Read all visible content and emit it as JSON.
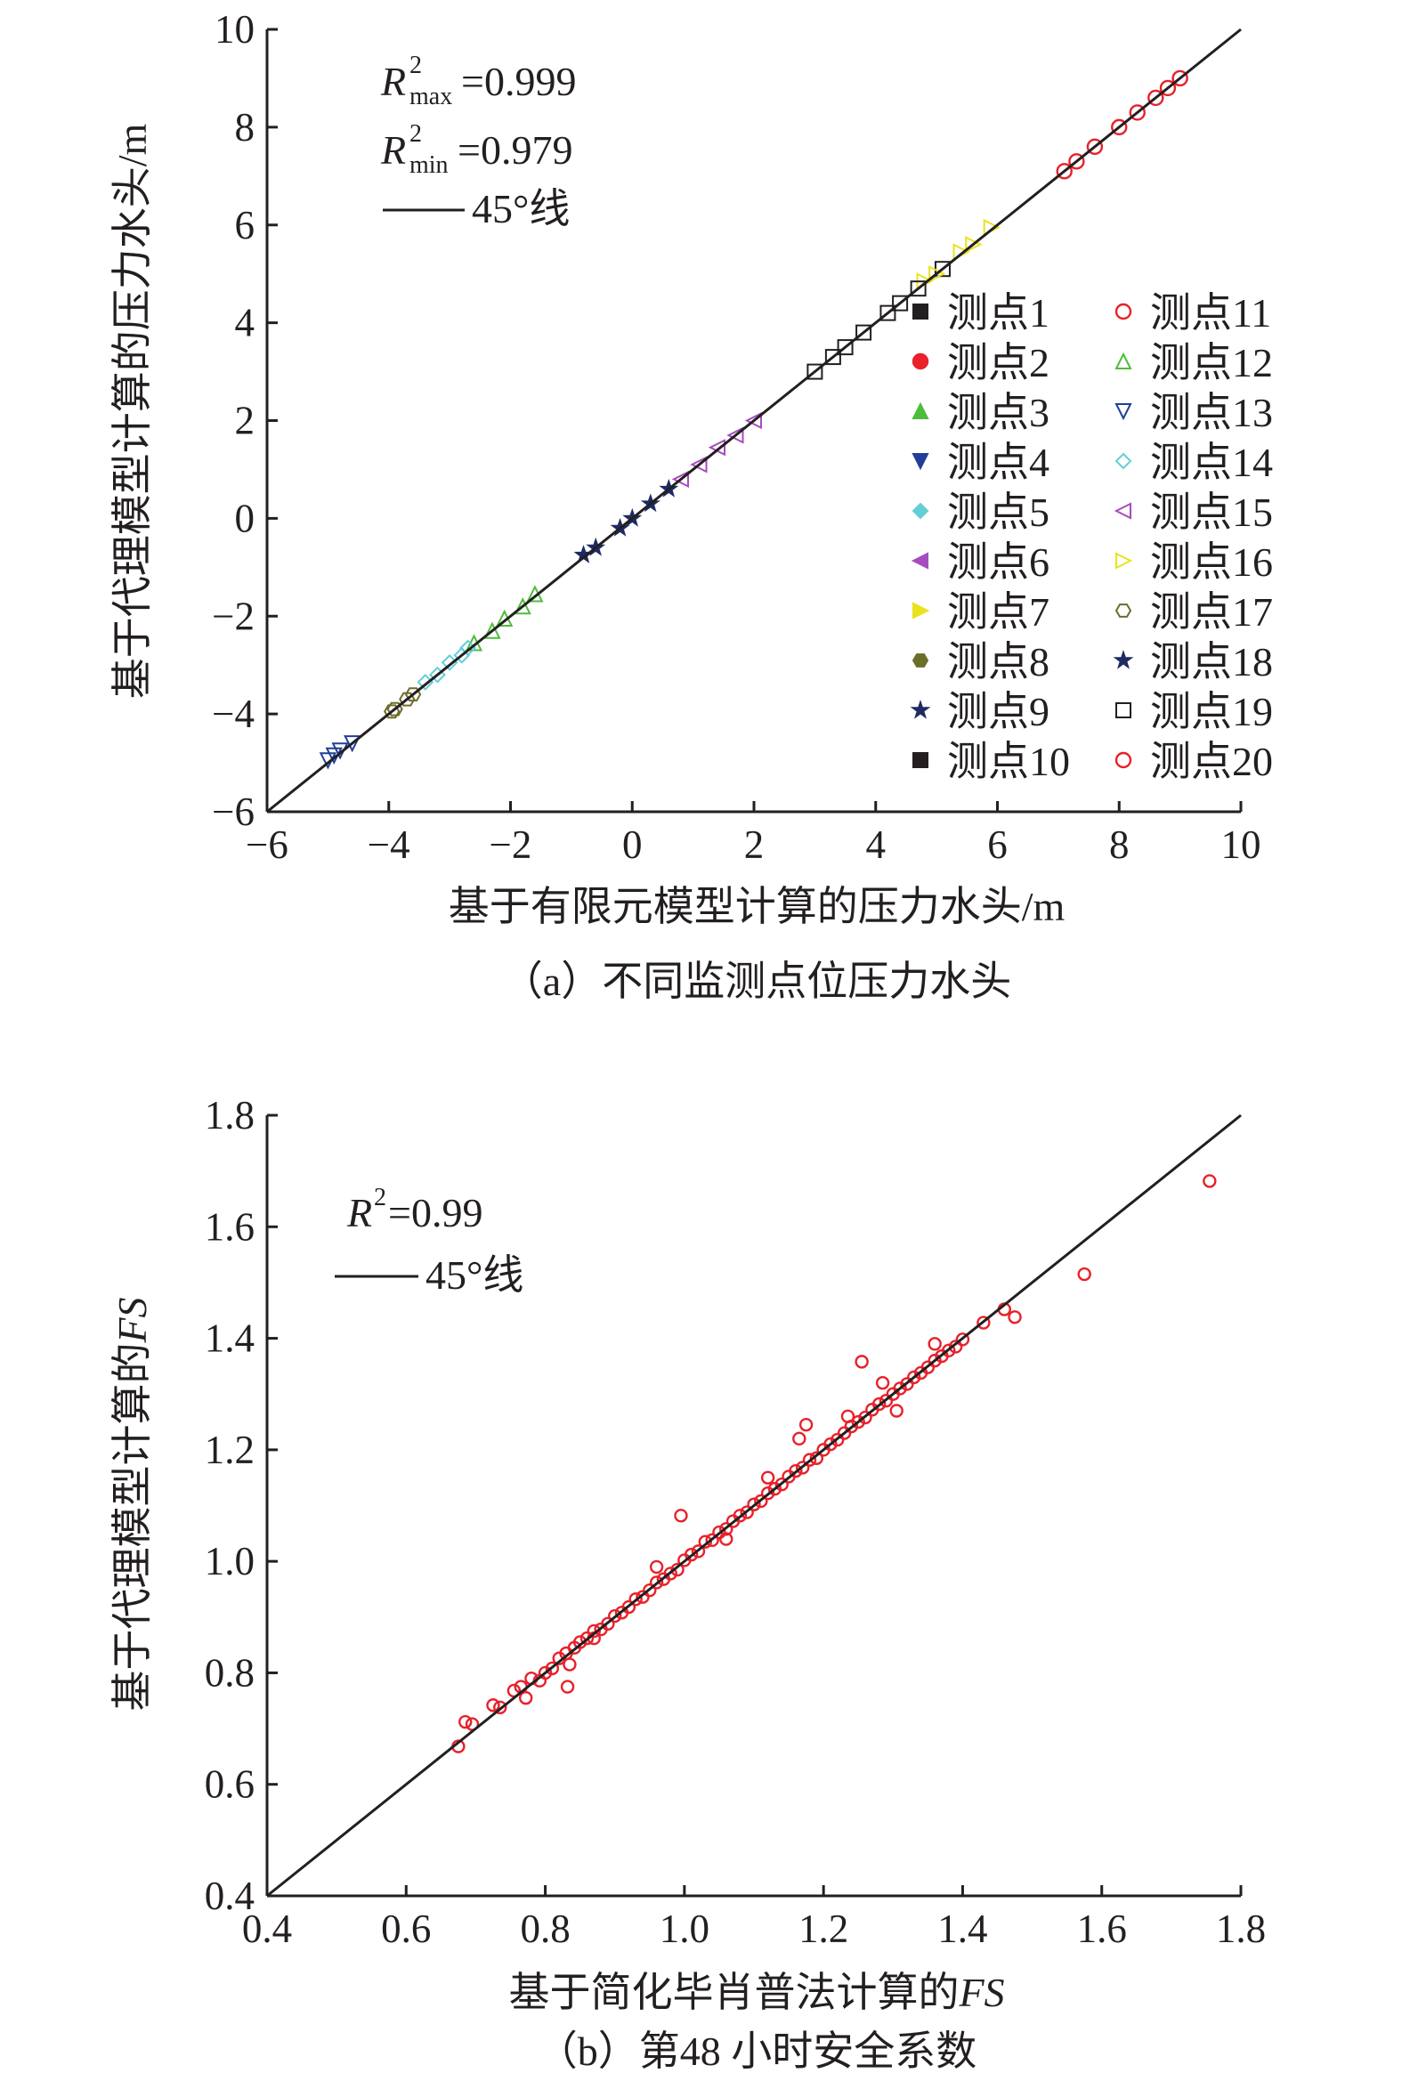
{
  "colors": {
    "axis": "#231f20",
    "fs_marker": "#e8212b",
    "pt1": "#231f20",
    "pt2": "#e8212b",
    "pt3": "#4dbe39",
    "pt4": "#1f3f9a",
    "pt5": "#62cfd6",
    "pt6": "#a54dbd",
    "pt7": "#e8e31c",
    "pt8": "#6d6d2a",
    "pt9": "#1e2b63",
    "pt10": "#231f20"
  },
  "chart_data": [
    {
      "type": "scatter",
      "caption": "（a）不同监测点位压力水头",
      "xlabel": "基于有限元模型计算的压力水头/m",
      "ylabel": "基于代理模型计算的压力水头/m",
      "xlim": [
        -6,
        10
      ],
      "ylim": [
        -6,
        10
      ],
      "xticks": [
        "−6",
        "−4",
        "−2",
        "0",
        "2",
        "4",
        "6",
        "8",
        "10"
      ],
      "yticks": [
        "−6",
        "−4",
        "−2",
        "0",
        "2",
        "4",
        "6",
        "8",
        "10"
      ],
      "grid": false,
      "annotations": {
        "r2max_base": "R",
        "r2max_sup": "2",
        "r2max_sub": "max",
        "r2max_val": "=0.999",
        "r2min_base": "R",
        "r2min_sup": "2",
        "r2min_sub": "min",
        "r2min_val": "=0.979",
        "line_label": "45°线"
      },
      "legend_position": "right-middle",
      "series": [
        {
          "name": "测点1",
          "marker": "square",
          "color": "#231f20",
          "x": [
            3.3,
            4.2,
            5.1
          ],
          "y": [
            3.3,
            4.2,
            5.1
          ]
        },
        {
          "name": "测点2",
          "marker": "circle",
          "color": "#e8212b",
          "x": [
            7.1,
            8.0,
            8.8
          ],
          "y": [
            7.1,
            8.0,
            8.8
          ]
        },
        {
          "name": "测点3",
          "marker": "triangle-up",
          "color": "#4dbe39",
          "x": [
            -2.6,
            -2.1,
            -1.6
          ],
          "y": [
            -2.55,
            -2.05,
            -1.55
          ]
        },
        {
          "name": "测点4",
          "marker": "triangle-down",
          "color": "#1f3f9a",
          "x": [
            -5.0,
            -4.8
          ],
          "y": [
            -4.95,
            -4.75
          ]
        },
        {
          "name": "测点5",
          "marker": "diamond",
          "color": "#62cfd6",
          "x": [
            -3.4,
            -3.0,
            -2.7
          ],
          "y": [
            -3.35,
            -2.95,
            -2.65
          ]
        },
        {
          "name": "测点6",
          "marker": "triangle-left",
          "color": "#a54dbd",
          "x": [
            0.8,
            1.4,
            2.0
          ],
          "y": [
            0.8,
            1.45,
            2.0
          ]
        },
        {
          "name": "测点7",
          "marker": "triangle-right",
          "color": "#e8e31c",
          "x": [
            4.8,
            5.4,
            5.9
          ],
          "y": [
            4.85,
            5.45,
            5.95
          ]
        },
        {
          "name": "测点8",
          "marker": "hexagon",
          "color": "#6d6d2a",
          "x": [
            -3.9,
            -3.7
          ],
          "y": [
            -3.9,
            -3.7
          ]
        },
        {
          "name": "测点9",
          "marker": "star",
          "color": "#1e2b63",
          "x": [
            -0.6,
            -0.2,
            0.3
          ],
          "y": [
            -0.6,
            -0.2,
            0.3
          ]
        },
        {
          "name": "测点10",
          "marker": "square",
          "color": "#231f20",
          "x": [
            3.0,
            3.8,
            4.7
          ],
          "y": [
            3.0,
            3.8,
            4.7
          ]
        },
        {
          "name": "测点11",
          "marker": "circle",
          "color": "#e8212b",
          "x": [
            7.3,
            8.3,
            9.0
          ],
          "y": [
            7.3,
            8.3,
            9.0
          ]
        },
        {
          "name": "测点12",
          "marker": "triangle-up",
          "color": "#4dbe39",
          "x": [
            -2.3,
            -1.8
          ],
          "y": [
            -2.3,
            -1.8
          ]
        },
        {
          "name": "测点13",
          "marker": "triangle-down",
          "color": "#1f3f9a",
          "x": [
            -4.9,
            -4.6
          ],
          "y": [
            -4.85,
            -4.6
          ]
        },
        {
          "name": "测点14",
          "marker": "diamond",
          "color": "#62cfd6",
          "x": [
            -3.2,
            -2.8
          ],
          "y": [
            -3.2,
            -2.8
          ]
        },
        {
          "name": "测点15",
          "marker": "triangle-left",
          "color": "#a54dbd",
          "x": [
            1.1,
            1.7
          ],
          "y": [
            1.1,
            1.7
          ]
        },
        {
          "name": "测点16",
          "marker": "triangle-right",
          "color": "#e8e31c",
          "x": [
            5.0,
            5.6
          ],
          "y": [
            5.0,
            5.6
          ]
        },
        {
          "name": "测点17",
          "marker": "hexagon",
          "color": "#6d6d2a",
          "x": [
            -3.95,
            -3.6
          ],
          "y": [
            -3.95,
            -3.6
          ]
        },
        {
          "name": "测点18",
          "marker": "star",
          "color": "#1e2b63",
          "x": [
            -0.8,
            0.0,
            0.6
          ],
          "y": [
            -0.75,
            0.0,
            0.6
          ]
        },
        {
          "name": "测点19",
          "marker": "square",
          "color": "#231f20",
          "x": [
            3.5,
            4.4
          ],
          "y": [
            3.5,
            4.4
          ]
        },
        {
          "name": "测点20",
          "marker": "circle",
          "color": "#e8212b",
          "x": [
            7.6,
            8.6
          ],
          "y": [
            7.6,
            8.6
          ]
        }
      ]
    },
    {
      "type": "scatter",
      "caption": "（b）第48 小时安全系数",
      "xlabel_text": "基于简化毕肖普法计算的",
      "xlabel_italic": "FS",
      "ylabel_text": "基于代理模型计算的",
      "ylabel_italic": "FS",
      "xlim": [
        0.4,
        1.8
      ],
      "ylim": [
        0.4,
        1.8
      ],
      "xticks": [
        "0.4",
        "0.6",
        "0.8",
        "1.0",
        "1.2",
        "1.4",
        "1.6",
        "1.8"
      ],
      "yticks": [
        "0.4",
        "0.6",
        "0.8",
        "1.0",
        "1.2",
        "1.4",
        "1.6",
        "1.8"
      ],
      "grid": false,
      "annotations": {
        "r2_base": "R",
        "r2_sup": "2",
        "r2_val": "=0.99",
        "line_label": "45°线"
      },
      "series": [
        {
          "marker": "circle-open",
          "color": "#e8212b",
          "x": [
            0.675,
            0.685,
            0.695,
            0.725,
            0.735,
            0.755,
            0.765,
            0.772,
            0.78,
            0.792,
            0.8,
            0.81,
            0.82,
            0.83,
            0.835,
            0.842,
            0.85,
            0.86,
            0.87,
            0.88,
            0.89,
            0.9,
            0.91,
            0.92,
            0.93,
            0.94,
            0.95,
            0.96,
            0.97,
            0.98,
            0.99,
            1.0,
            1.01,
            1.02,
            1.03,
            1.04,
            1.05,
            1.06,
            1.07,
            1.08,
            1.09,
            1.1,
            1.11,
            1.12,
            1.13,
            1.14,
            1.15,
            1.16,
            1.17,
            1.18,
            1.19,
            1.2,
            1.21,
            1.22,
            1.23,
            1.24,
            1.25,
            1.26,
            1.27,
            1.28,
            1.29,
            1.3,
            1.31,
            1.32,
            1.33,
            1.34,
            1.35,
            1.36,
            1.37,
            1.38,
            1.39,
            1.4,
            1.43,
            1.46,
            1.475,
            1.575,
            1.755,
            0.995,
            1.175,
            1.255,
            1.165,
            1.12,
            1.06,
            0.96,
            0.87,
            0.832,
            1.235,
            1.285,
            1.36,
            1.305
          ],
          "y": [
            0.668,
            0.712,
            0.708,
            0.742,
            0.738,
            0.768,
            0.775,
            0.755,
            0.79,
            0.786,
            0.8,
            0.808,
            0.826,
            0.835,
            0.815,
            0.845,
            0.855,
            0.862,
            0.875,
            0.878,
            0.888,
            0.902,
            0.908,
            0.918,
            0.932,
            0.936,
            0.948,
            0.962,
            0.968,
            0.978,
            0.985,
            1.002,
            1.012,
            1.018,
            1.035,
            1.038,
            1.052,
            1.058,
            1.072,
            1.082,
            1.088,
            1.102,
            1.108,
            1.122,
            1.13,
            1.138,
            1.152,
            1.162,
            1.168,
            1.182,
            1.185,
            1.2,
            1.21,
            1.218,
            1.23,
            1.242,
            1.25,
            1.258,
            1.272,
            1.282,
            1.288,
            1.3,
            1.31,
            1.318,
            1.33,
            1.338,
            1.348,
            1.36,
            1.368,
            1.378,
            1.385,
            1.398,
            1.428,
            1.452,
            1.438,
            1.515,
            1.682,
            1.082,
            1.245,
            1.358,
            1.22,
            1.15,
            1.04,
            0.99,
            0.862,
            0.775,
            1.26,
            1.32,
            1.39,
            1.27
          ]
        }
      ]
    }
  ]
}
